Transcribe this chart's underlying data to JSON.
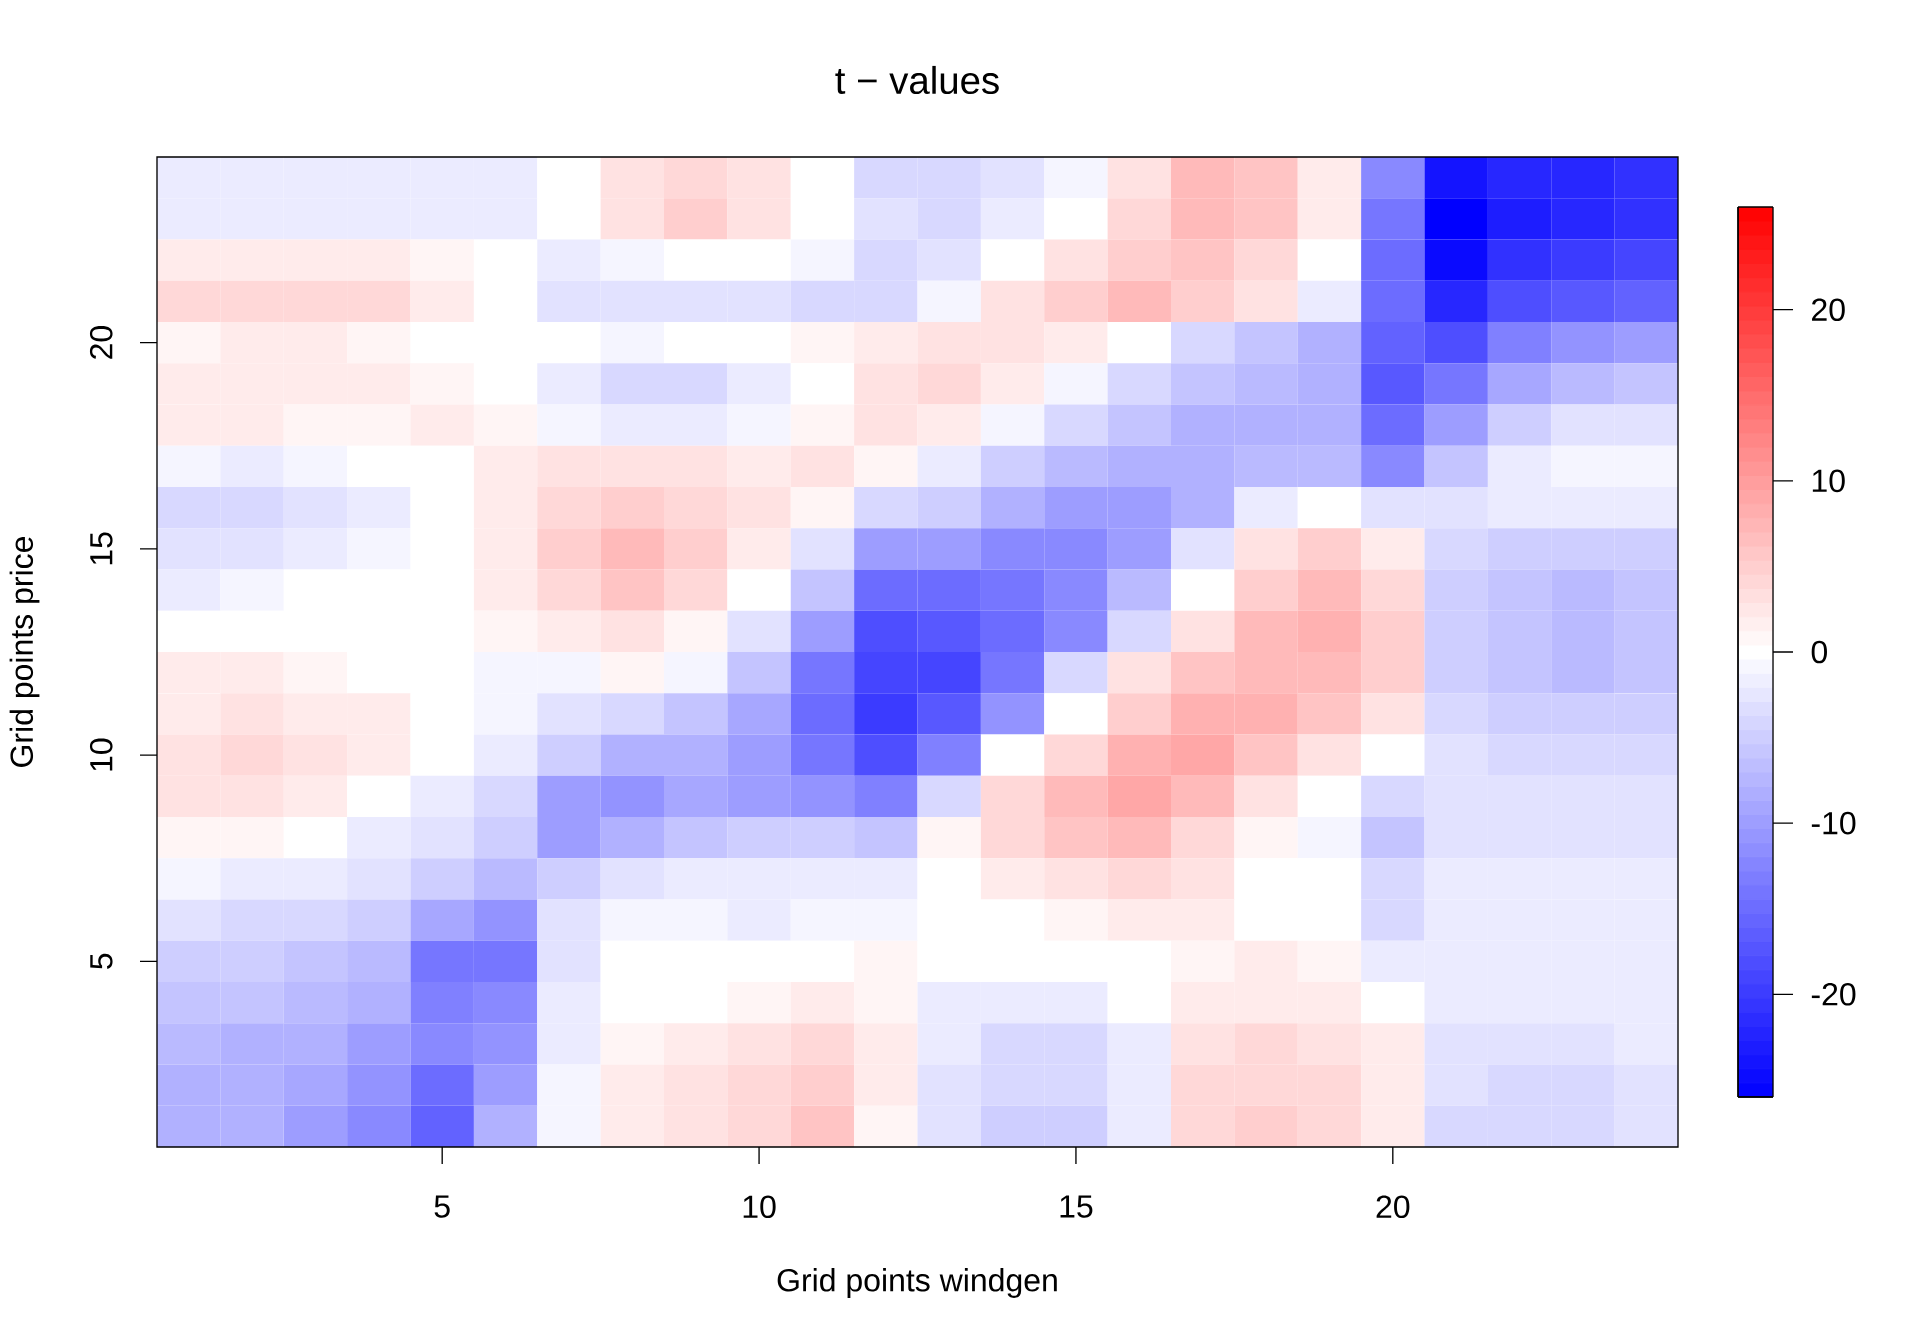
{
  "chart_data": {
    "type": "heatmap",
    "title": "t − values",
    "xlabel": "Grid points windgen",
    "ylabel": "Grid points price",
    "categories": [
      null,
      null,
      null,
      null,
      "5",
      null,
      null,
      null,
      null,
      "10",
      null,
      null,
      null,
      null,
      "15",
      null,
      null,
      null,
      null,
      "20",
      null,
      null,
      null,
      null
    ],
    "y_categories": [
      null,
      null,
      null,
      null,
      "20",
      null,
      null,
      null,
      null,
      "15",
      null,
      null,
      null,
      null,
      "10",
      null,
      null,
      null,
      null,
      "5",
      null,
      null,
      null,
      null
    ],
    "cells": [
      [
        -2,
        -2,
        -2,
        -2,
        -2,
        -2,
        0,
        3,
        4,
        3,
        0,
        -4,
        -4,
        -3,
        -1,
        3,
        7,
        6,
        2,
        -12,
        -24,
        -22,
        -22,
        -21
      ],
      [
        -2,
        -2,
        -2,
        -2,
        -2,
        -2,
        0,
        3,
        5,
        3,
        0,
        -3,
        -4,
        -2,
        0,
        4,
        7,
        6,
        2,
        -14,
        -26,
        -23,
        -22,
        -21
      ],
      [
        2,
        2,
        2,
        2,
        1,
        0,
        -2,
        -1,
        0,
        0,
        -1,
        -4,
        -3,
        0,
        3,
        5,
        6,
        4,
        0,
        -15,
        -25,
        -21,
        -20,
        -19
      ],
      [
        4,
        4,
        4,
        4,
        2,
        0,
        -3,
        -3,
        -3,
        -3,
        -4,
        -4,
        -1,
        3,
        5,
        7,
        5,
        3,
        -2,
        -15,
        -22,
        -18,
        -17,
        -16
      ],
      [
        1,
        2,
        2,
        1,
        0,
        0,
        0,
        -1,
        0,
        0,
        1,
        2,
        3,
        3,
        2,
        0,
        -4,
        -6,
        -8,
        -16,
        -18,
        -13,
        -11,
        -10
      ],
      [
        2,
        2,
        2,
        2,
        1,
        0,
        -2,
        -4,
        -4,
        -2,
        0,
        3,
        4,
        2,
        -1,
        -4,
        -6,
        -7,
        -8,
        -17,
        -14,
        -9,
        -7,
        -6
      ],
      [
        2,
        2,
        1,
        1,
        2,
        1,
        -1,
        -2,
        -2,
        -1,
        1,
        3,
        2,
        -1,
        -4,
        -6,
        -8,
        -8,
        -8,
        -15,
        -10,
        -5,
        -3,
        -3
      ],
      [
        -1,
        -2,
        -1,
        0,
        0,
        2,
        3,
        3,
        3,
        2,
        3,
        1,
        -2,
        -5,
        -7,
        -8,
        -8,
        -7,
        -7,
        -12,
        -6,
        -2,
        -1,
        -1
      ],
      [
        -4,
        -4,
        -3,
        -2,
        0,
        2,
        4,
        5,
        4,
        3,
        1,
        -4,
        -5,
        -8,
        -10,
        -10,
        -8,
        -2,
        0,
        -3,
        -3,
        -2,
        -2,
        -2
      ],
      [
        -3,
        -3,
        -2,
        -1,
        0,
        2,
        5,
        7,
        5,
        2,
        -3,
        -10,
        -10,
        -12,
        -12,
        -10,
        -3,
        3,
        5,
        2,
        -4,
        -5,
        -5,
        -5
      ],
      [
        -2,
        -1,
        0,
        0,
        0,
        2,
        4,
        6,
        4,
        0,
        -6,
        -15,
        -15,
        -14,
        -12,
        -7,
        0,
        5,
        7,
        4,
        -5,
        -6,
        -7,
        -6
      ],
      [
        0,
        0,
        0,
        0,
        0,
        1,
        2,
        3,
        1,
        -3,
        -10,
        -18,
        -17,
        -15,
        -12,
        -4,
        3,
        7,
        8,
        5,
        -5,
        -6,
        -7,
        -6
      ],
      [
        2,
        2,
        1,
        0,
        0,
        -1,
        -1,
        1,
        -1,
        -6,
        -14,
        -19,
        -19,
        -14,
        -4,
        3,
        6,
        7,
        7,
        5,
        -5,
        -6,
        -7,
        -6
      ],
      [
        2,
        3,
        2,
        2,
        0,
        -1,
        -3,
        -4,
        -6,
        -9,
        -15,
        -20,
        -17,
        -11,
        0,
        5,
        8,
        8,
        6,
        3,
        -4,
        -5,
        -5,
        -5
      ],
      [
        3,
        4,
        3,
        2,
        0,
        -2,
        -5,
        -8,
        -8,
        -10,
        -14,
        -18,
        -13,
        0,
        4,
        8,
        9,
        6,
        3,
        0,
        -3,
        -4,
        -4,
        -4
      ],
      [
        3,
        3,
        2,
        0,
        -2,
        -4,
        -10,
        -11,
        -9,
        -10,
        -11,
        -13,
        -4,
        4,
        7,
        9,
        7,
        3,
        0,
        -4,
        -3,
        -3,
        -3,
        -3
      ],
      [
        1,
        1,
        0,
        -2,
        -3,
        -5,
        -10,
        -8,
        -6,
        -5,
        -5,
        -6,
        1,
        4,
        6,
        7,
        4,
        1,
        -1,
        -6,
        -3,
        -3,
        -3,
        -3
      ],
      [
        -1,
        -2,
        -2,
        -3,
        -5,
        -7,
        -5,
        -3,
        -2,
        -2,
        -2,
        -2,
        0,
        2,
        3,
        4,
        3,
        0,
        0,
        -4,
        -2,
        -2,
        -2,
        -2
      ],
      [
        -3,
        -4,
        -4,
        -5,
        -9,
        -11,
        -3,
        -1,
        -1,
        -2,
        -1,
        -1,
        0,
        0,
        1,
        2,
        2,
        0,
        0,
        -4,
        -2,
        -2,
        -2,
        -2
      ],
      [
        -5,
        -5,
        -6,
        -7,
        -14,
        -14,
        -3,
        0,
        0,
        0,
        0,
        1,
        0,
        0,
        0,
        0,
        1,
        2,
        1,
        -2,
        -2,
        -2,
        -2,
        -2
      ],
      [
        -6,
        -6,
        -7,
        -8,
        -13,
        -12,
        -2,
        0,
        0,
        1,
        2,
        1,
        -2,
        -2,
        -2,
        0,
        2,
        2,
        2,
        0,
        -2,
        -2,
        -2,
        -2
      ],
      [
        -7,
        -8,
        -8,
        -10,
        -12,
        -11,
        -2,
        1,
        2,
        3,
        4,
        2,
        -2,
        -4,
        -4,
        -2,
        3,
        4,
        3,
        2,
        -3,
        -3,
        -3,
        -2
      ],
      [
        -8,
        -8,
        -9,
        -11,
        -15,
        -10,
        -1,
        2,
        3,
        4,
        5,
        2,
        -3,
        -4,
        -4,
        -2,
        4,
        4,
        4,
        2,
        -3,
        -4,
        -4,
        -3
      ],
      [
        -8,
        -8,
        -10,
        -12,
        -16,
        -8,
        -1,
        2,
        3,
        4,
        6,
        1,
        -3,
        -5,
        -5,
        -2,
        4,
        5,
        4,
        2,
        -4,
        -4,
        -4,
        -3
      ]
    ],
    "clim": [
      -26,
      26
    ],
    "cticks": [
      -20,
      -10,
      0,
      10,
      20
    ]
  }
}
